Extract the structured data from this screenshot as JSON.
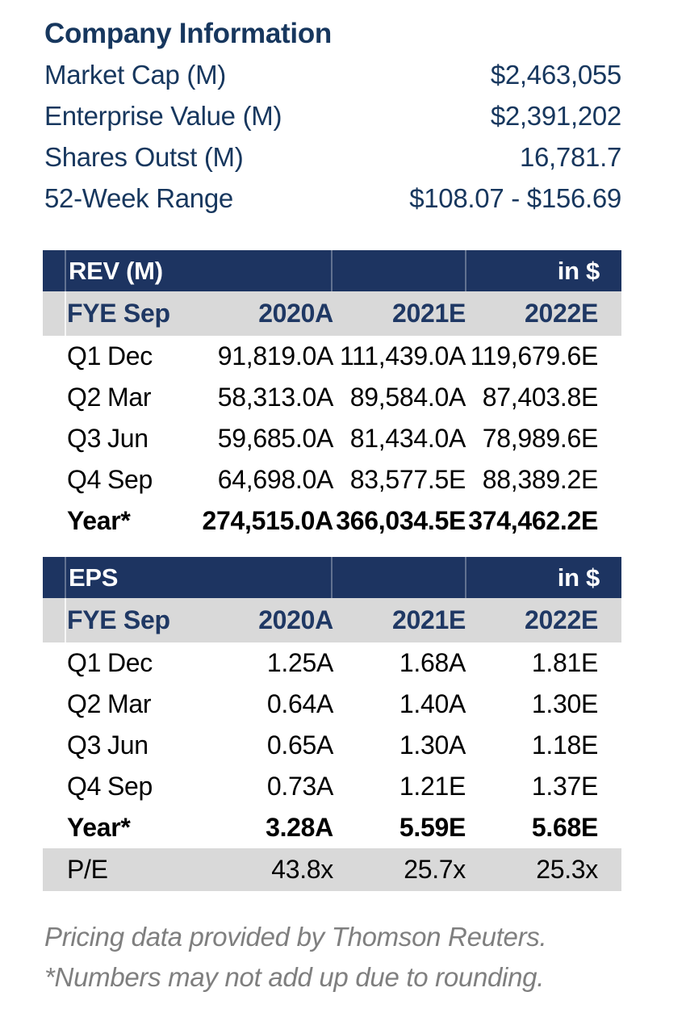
{
  "company_information": {
    "title": "Company Information",
    "rows": [
      {
        "label": "Market Cap (M)",
        "value": "$2,463,055"
      },
      {
        "label": "Enterprise Value (M)",
        "value": "$2,391,202"
      },
      {
        "label": "Shares Outst (M)",
        "value": "16,781.7"
      },
      {
        "label": "52-Week Range",
        "value": "$108.07 - $156.69"
      }
    ]
  },
  "rev_table": {
    "title": "REV (M)",
    "unit": "in $",
    "fiscal_year_label": "FYE Sep",
    "columns": [
      "2020A",
      "2021E",
      "2022E"
    ],
    "rows": [
      {
        "quarter": "Q1",
        "month": "Dec",
        "values": [
          "91,819.0A",
          "111,439.0A",
          "119,679.6E"
        ]
      },
      {
        "quarter": "Q2",
        "month": "Mar",
        "values": [
          "58,313.0A",
          "89,584.0A",
          "87,403.8E"
        ]
      },
      {
        "quarter": "Q3",
        "month": "Jun",
        "values": [
          "59,685.0A",
          "81,434.0A",
          "78,989.6E"
        ]
      },
      {
        "quarter": "Q4",
        "month": "Sep",
        "values": [
          "64,698.0A",
          "83,577.5E",
          "88,389.2E"
        ]
      }
    ],
    "total_row": {
      "label": "Year*",
      "values": [
        "274,515.0A",
        "366,034.5E",
        "374,462.2E"
      ]
    }
  },
  "eps_table": {
    "title": "EPS",
    "unit": "in $",
    "fiscal_year_label": "FYE Sep",
    "columns": [
      "2020A",
      "2021E",
      "2022E"
    ],
    "rows": [
      {
        "quarter": "Q1",
        "month": "Dec",
        "values": [
          "1.25A",
          "1.68A",
          "1.81E"
        ]
      },
      {
        "quarter": "Q2",
        "month": "Mar",
        "values": [
          "0.64A",
          "1.40A",
          "1.30E"
        ]
      },
      {
        "quarter": "Q3",
        "month": "Jun",
        "values": [
          "0.65A",
          "1.30A",
          "1.18E"
        ]
      },
      {
        "quarter": "Q4",
        "month": "Sep",
        "values": [
          "0.73A",
          "1.21E",
          "1.37E"
        ]
      }
    ],
    "total_row": {
      "label": "Year*",
      "values": [
        "3.28A",
        "5.59E",
        "5.68E"
      ]
    },
    "pe_row": {
      "label": "P/E",
      "values": [
        "43.8x",
        "25.7x",
        "25.3x"
      ]
    }
  },
  "footnotes": [
    "Pricing data provided by Thomson Reuters.",
    "*Numbers may not add up due to rounding."
  ],
  "colors": {
    "navy_band": "#1D3461",
    "band_text": "#FFFFFF",
    "header_text_navy": "#1F3864",
    "gray_band": "#D9D9D9",
    "body_text": "#000000",
    "info_text_navy": "#17375E",
    "footnote_gray": "#7F7F7F"
  }
}
